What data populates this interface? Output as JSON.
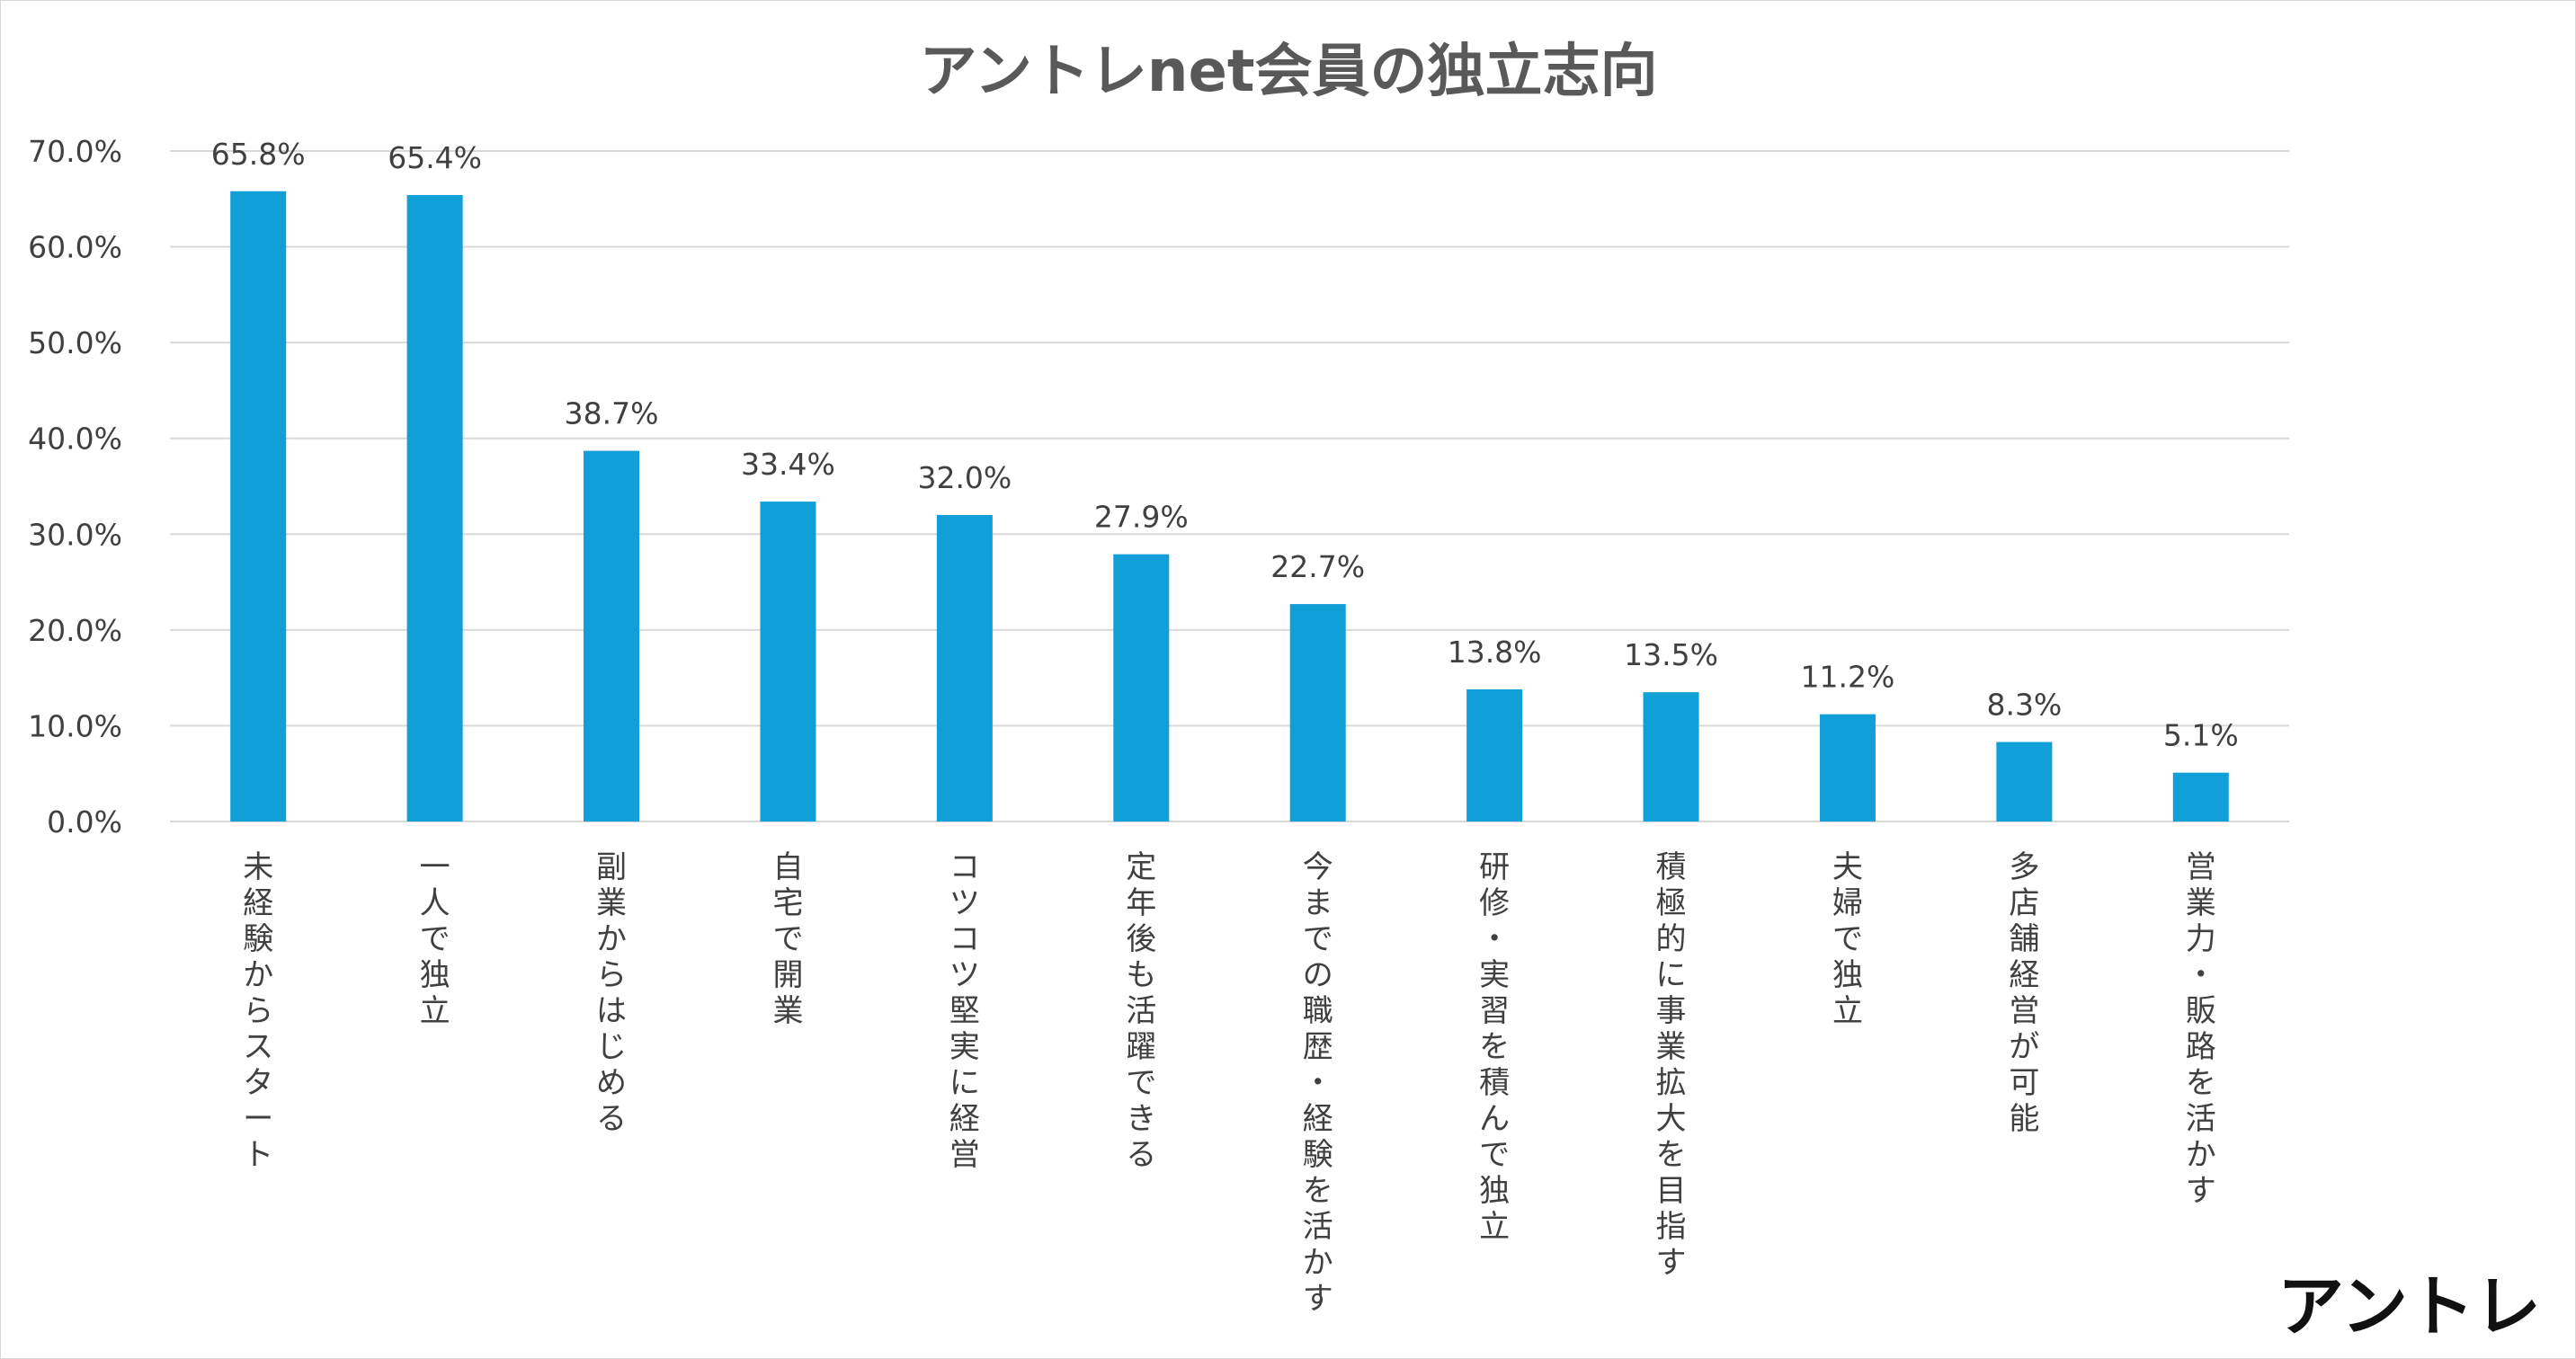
{
  "chart_data": {
    "type": "bar",
    "title": "アントレnet会員の独立志向",
    "categories": [
      "未経験からスタート",
      "一人で独立",
      "副業からはじめる",
      "自宅で開業",
      "コツコツ堅実に経営",
      "定年後も活躍できる",
      "今までの職歴・経験を活かす",
      "研修・実習を積んで独立",
      "積極的に事業拡大を目指す",
      "夫婦で独立",
      "多店舗経営が可能",
      "営業力・販路を活かす"
    ],
    "values": [
      65.8,
      65.4,
      38.7,
      33.4,
      32.0,
      27.9,
      22.7,
      13.8,
      13.5,
      11.2,
      8.3,
      5.1
    ],
    "value_labels": [
      "65.8%",
      "65.4%",
      "38.7%",
      "33.4%",
      "32.0%",
      "27.9%",
      "22.7%",
      "13.8%",
      "13.5%",
      "11.2%",
      "8.3%",
      "5.1%"
    ],
    "ylim": [
      0,
      70
    ],
    "yticks": [
      "0.0%",
      "10.0%",
      "20.0%",
      "30.0%",
      "40.0%",
      "50.0%",
      "60.0%",
      "70.0%"
    ],
    "grid": true,
    "xlabel": "",
    "ylabel": "",
    "bar_color": "#119fd8"
  },
  "logo": {
    "text": "アントレ"
  }
}
